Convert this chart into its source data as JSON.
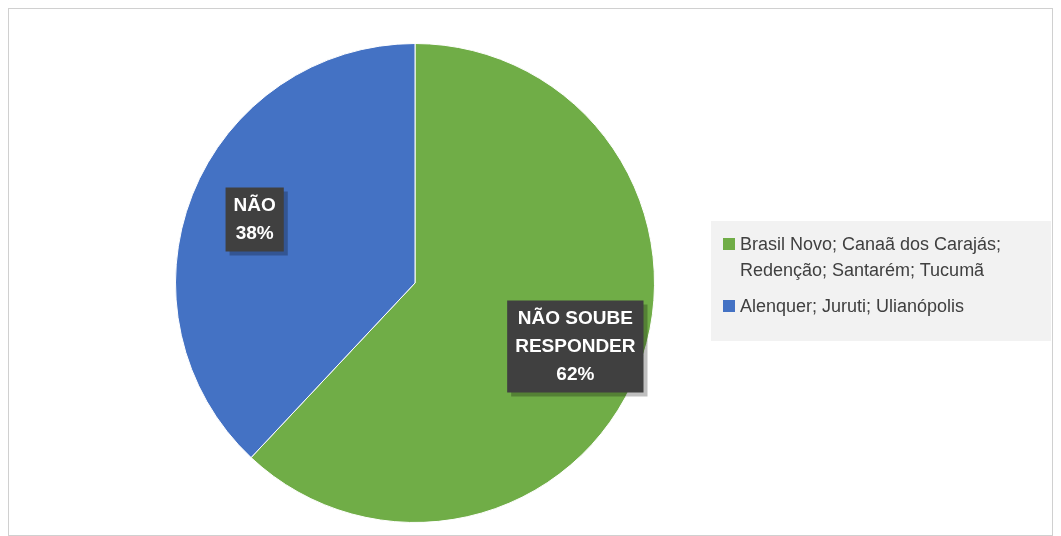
{
  "chart_data": {
    "type": "pie",
    "categories": [
      "Brasil Novo; Canaã dos Carajás; Redenção; Santarém; Tucumã",
      "Alenquer; Juruti; Ulianópolis"
    ],
    "values": [
      62,
      38
    ],
    "colors": [
      "#70ad47",
      "#4472c4"
    ],
    "value_labels": [
      "NÃO SOUBE\nRESPONDER\n62%",
      "NÃO\n38%"
    ],
    "legend": "right"
  }
}
